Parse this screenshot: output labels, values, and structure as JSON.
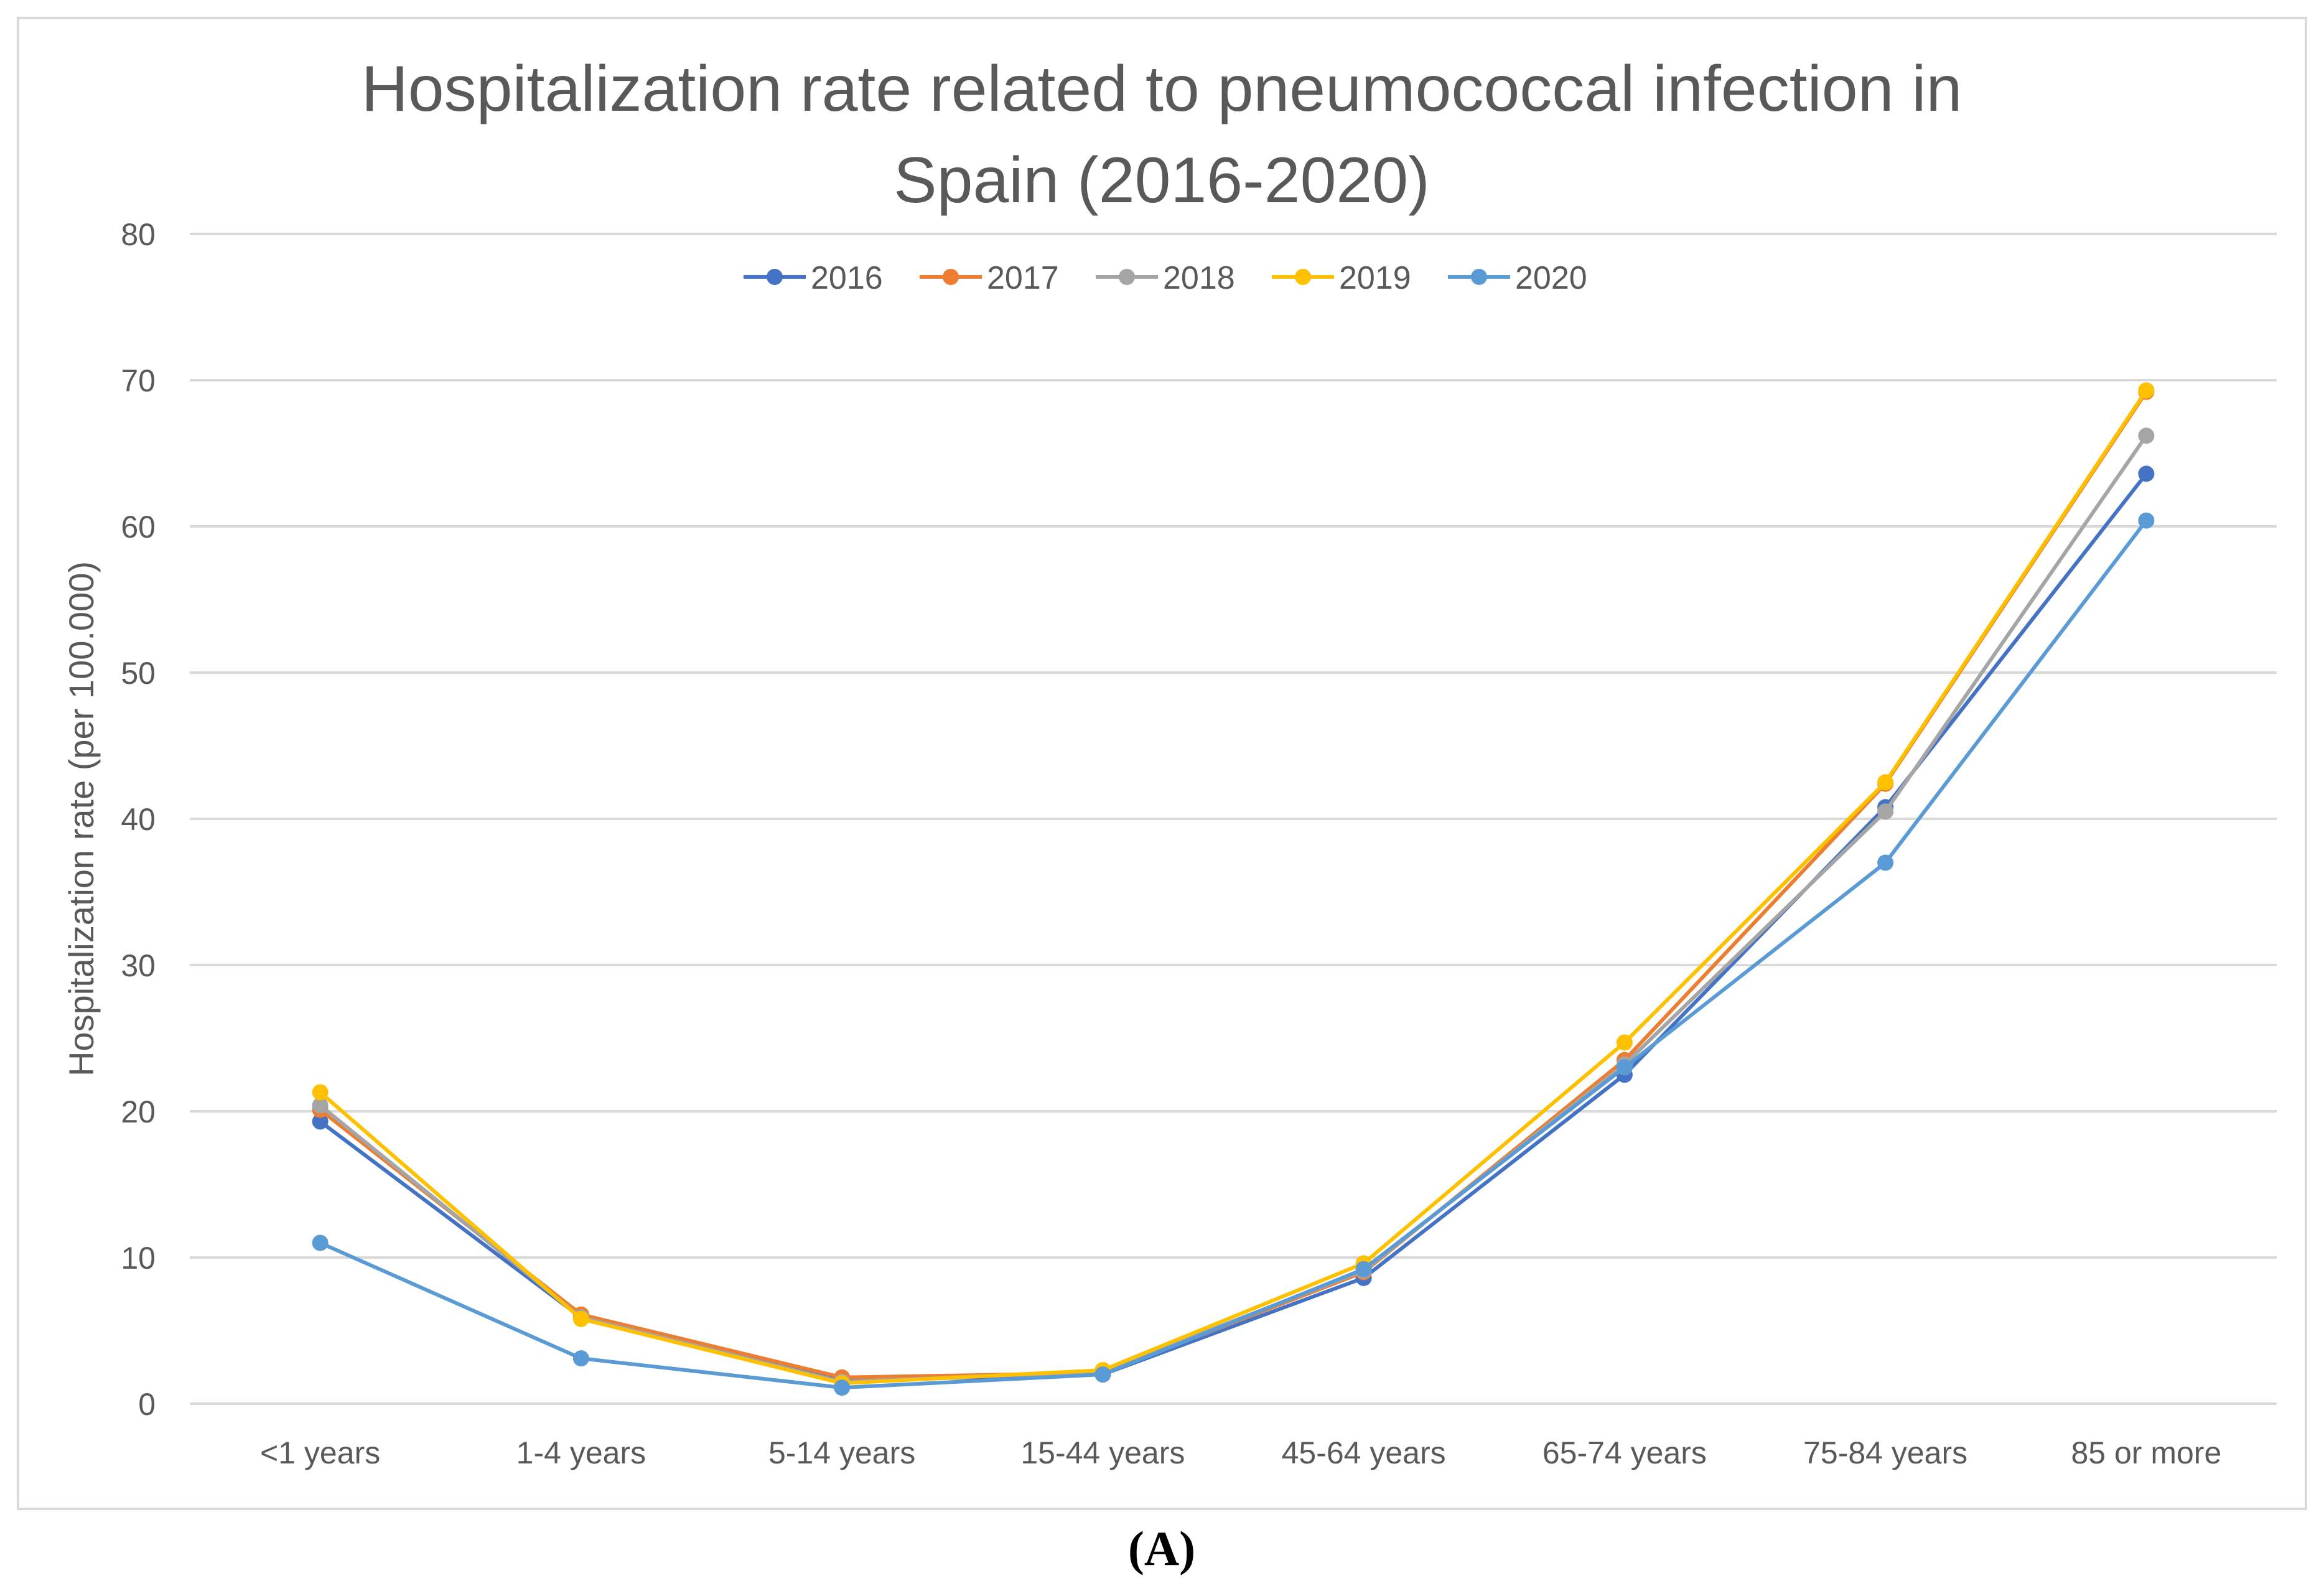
{
  "chart_data": {
    "type": "line",
    "title_lines": [
      "Hospitalization rate related to pneumococcal infection in",
      "Spain (2016-2020)"
    ],
    "xlabel": "",
    "ylabel": "Hospitalization rate (per 100.000)",
    "ylim": [
      0,
      80
    ],
    "yticks": [
      0,
      10,
      20,
      30,
      40,
      50,
      60,
      70,
      80
    ],
    "grid": true,
    "legend_position": "top-center",
    "categories": [
      "<1 years",
      "1-4 years",
      "5-14 years",
      "15-44 years",
      "45-64 years",
      "65-74 years",
      "75-84 years",
      "85 or more"
    ],
    "series": [
      {
        "name": "2016",
        "color": "#4472C4",
        "values": [
          19.3,
          5.9,
          1.6,
          2.0,
          8.6,
          22.5,
          40.8,
          63.6
        ]
      },
      {
        "name": "2017",
        "color": "#ED7D31",
        "values": [
          20.1,
          6.1,
          1.8,
          2.1,
          9.0,
          23.5,
          42.4,
          69.2
        ]
      },
      {
        "name": "2018",
        "color": "#A5A5A5",
        "values": [
          20.4,
          5.9,
          1.5,
          2.2,
          9.1,
          23.2,
          40.5,
          66.2
        ]
      },
      {
        "name": "2019",
        "color": "#FFC000",
        "values": [
          21.3,
          5.8,
          1.4,
          2.3,
          9.6,
          24.7,
          42.5,
          69.3
        ]
      },
      {
        "name": "2020",
        "color": "#5B9BD5",
        "values": [
          11.0,
          3.1,
          1.1,
          2.0,
          9.2,
          23.0,
          37.0,
          60.4
        ]
      }
    ]
  },
  "caption": "(A)"
}
